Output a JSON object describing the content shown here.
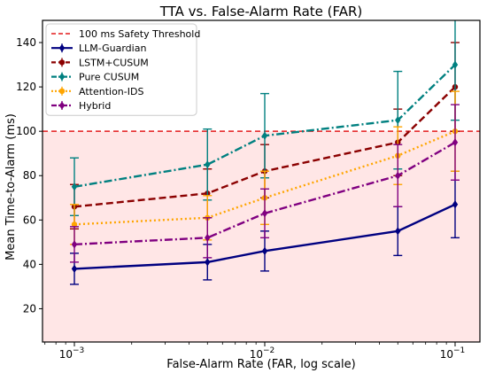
{
  "chart_data": {
    "type": "line",
    "title": "TTA vs. False-Alarm Rate (FAR)",
    "xlabel": "False-Alarm Rate (FAR, log scale)",
    "ylabel": "Mean Time-to-Alarm (ms)",
    "xscale": "log",
    "x": [
      0.001,
      0.005,
      0.01,
      0.05,
      0.1
    ],
    "xlim": [
      0.00068,
      0.135
    ],
    "ylim": [
      5,
      150
    ],
    "x_tick_labels": [
      {
        "value": 0.001,
        "base": "10",
        "exp": "−3"
      },
      {
        "value": 0.01,
        "base": "10",
        "exp": "−2"
      },
      {
        "value": 0.1,
        "base": "10",
        "exp": "−1"
      }
    ],
    "y_ticks": [
      20,
      40,
      60,
      80,
      100,
      120,
      140
    ],
    "grid": false,
    "legend_position": "top-left",
    "threshold": {
      "label": "100 ms Safety Threshold",
      "value": 100,
      "color": "#e41a1c",
      "shade_color": "#ffe6e6"
    },
    "series": [
      {
        "name": "LLM-Guardian",
        "color": "#000080",
        "dash": "solid",
        "marker": "d",
        "values": [
          38,
          41,
          46,
          55,
          67
        ],
        "err_low": [
          31,
          33,
          37,
          44,
          52
        ],
        "err_high": [
          45,
          49,
          55,
          66,
          82
        ]
      },
      {
        "name": "LSTM+CUSUM",
        "color": "#8b0000",
        "dash": "dashed",
        "marker": "o",
        "values": [
          66,
          72,
          82,
          95,
          120
        ],
        "err_low": [
          56,
          61,
          70,
          80,
          100
        ],
        "err_high": [
          76,
          83,
          94,
          110,
          140
        ]
      },
      {
        "name": "Pure CUSUM",
        "color": "#008080",
        "dash": "dashdot",
        "marker": "d",
        "values": [
          75,
          85,
          98,
          105,
          130
        ],
        "err_low": [
          62,
          69,
          79,
          83,
          105
        ],
        "err_high": [
          88,
          101,
          117,
          127,
          155
        ]
      },
      {
        "name": "Attention-IDS",
        "color": "#ffa500",
        "dash": "dotted",
        "marker": "o",
        "values": [
          58,
          61,
          70,
          89,
          100
        ],
        "err_low": [
          49,
          51,
          58,
          76,
          82
        ],
        "err_high": [
          67,
          71,
          82,
          102,
          118
        ]
      },
      {
        "name": "Hybrid",
        "color": "#800080",
        "dash": "dashdot",
        "marker": "d",
        "values": [
          49,
          52,
          63,
          80,
          95
        ],
        "err_low": [
          41,
          43,
          52,
          66,
          78
        ],
        "err_high": [
          57,
          61,
          74,
          94,
          112
        ]
      }
    ]
  }
}
